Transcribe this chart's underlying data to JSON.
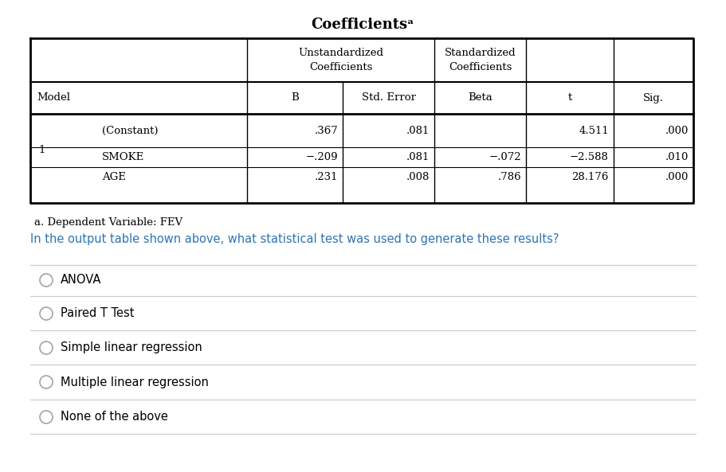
{
  "title": "Coefficientsᵃ",
  "footnote": "a. Dependent Variable: FEV",
  "question": "In the output table shown above, what statistical test was used to generate these results?",
  "choices": [
    "ANOVA",
    "Paired T Test",
    "Simple linear regression",
    "Multiple linear regression",
    "None of the above"
  ],
  "data_rows": [
    [
      "1",
      "(Constant)",
      ".367",
      ".081",
      "",
      "4.511",
      ".000"
    ],
    [
      "",
      "SMOKE",
      "−.209",
      ".081",
      "−.072",
      "−2.588",
      ".010"
    ],
    [
      "",
      "AGE",
      ".231",
      ".008",
      ".786",
      "28.176",
      ".000"
    ]
  ],
  "bg_color": "#ffffff",
  "text_color": "#000000",
  "question_color": "#2e74b5",
  "separator_color": "#cccccc",
  "radio_color": "#aaaaaa",
  "table_border_color": "#000000"
}
